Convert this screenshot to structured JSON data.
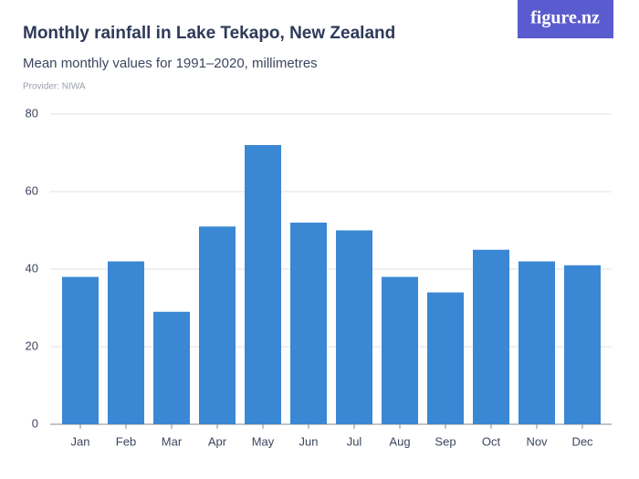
{
  "brand": "figure.nz",
  "chart_data": {
    "type": "bar",
    "title": "Monthly rainfall in Lake Tekapo, New Zealand",
    "subtitle": "Mean monthly values for 1991–2020, millimetres",
    "provider": "Provider: NIWA",
    "categories": [
      "Jan",
      "Feb",
      "Mar",
      "Apr",
      "May",
      "Jun",
      "Jul",
      "Aug",
      "Sep",
      "Oct",
      "Nov",
      "Dec"
    ],
    "values": [
      38,
      42,
      29,
      51,
      72,
      52,
      50,
      38,
      34,
      45,
      42,
      41
    ],
    "color": "#3a87d4",
    "ylim": [
      0,
      80
    ],
    "yticks": [
      0,
      20,
      40,
      60,
      80
    ],
    "grid": true
  }
}
